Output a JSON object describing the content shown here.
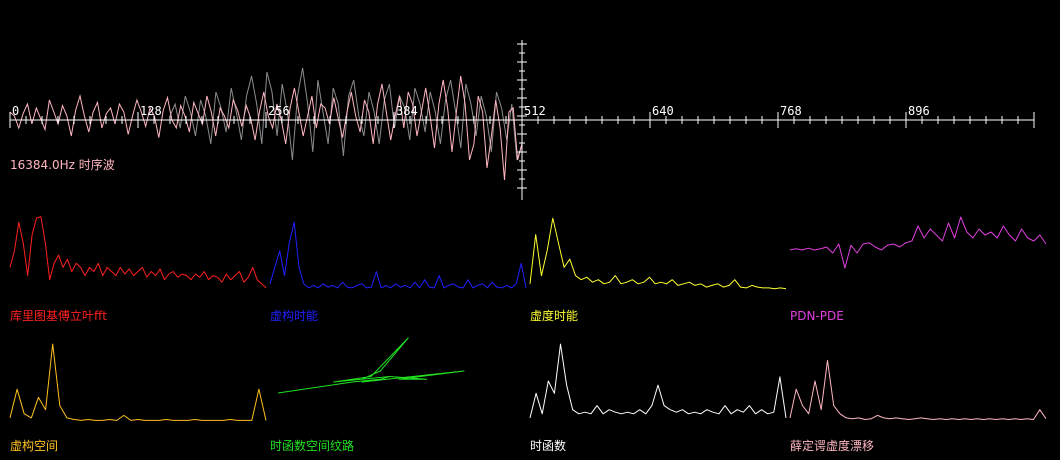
{
  "colors": {
    "background": "#000000",
    "axis": "#ffffff",
    "waveform_primary": "#ffb6c1",
    "waveform_secondary": "#8c8c8c",
    "fft": "#ff2020",
    "imag_energy": "#2020ff",
    "virtual_energy": "#ffff30",
    "pdn_pde": "#e040e0",
    "imag_space": "#ffc020",
    "phase_path": "#20e020",
    "time_function": "#ffffff",
    "schrodinger_drift": "#ffb6c1"
  },
  "chart_data": [
    {
      "type": "line",
      "id": "time-waveform",
      "annotation": "16384.0Hz 时序波",
      "x_tick_labels": [
        "0",
        "128",
        "256",
        "384",
        "512",
        "640",
        "768",
        "896"
      ],
      "xlim": [
        0,
        1024
      ],
      "ylim": [
        -1,
        1
      ],
      "series": [
        {
          "color": "#ffb6c1",
          "x_range": [
            0,
            512
          ],
          "values": [
            0.1,
            0.05,
            -0.1,
            0.08,
            0.2,
            -0.05,
            0.15,
            0.02,
            -0.12,
            0.25,
            0.1,
            -0.05,
            0.18,
            0.05,
            -0.2,
            0.12,
            0.3,
            0.05,
            -0.15,
            0.1,
            0.22,
            -0.1,
            0.08,
            0.15,
            -0.05,
            0.2,
            0.1,
            -0.18,
            0.05,
            0.25,
            0.1,
            -0.08,
            0.15,
            0.05,
            -0.22,
            0.12,
            0.28,
            0.0,
            -0.1,
            0.18,
            0.05,
            -0.15,
            0.22,
            0.08,
            -0.05,
            0.3,
            0.1,
            -0.2,
            0.15,
            0.05,
            -0.1,
            0.25,
            0.12,
            -0.08,
            0.18,
            0.02,
            -0.25,
            0.1,
            0.35,
            0.05,
            -0.1,
            0.2,
            0.0,
            -0.3,
            0.15,
            0.4,
            0.1,
            -0.2,
            0.05,
            0.3,
            -0.1,
            0.2,
            0.15,
            -0.05,
            0.28,
            0.02,
            -0.22,
            0.1,
            0.35,
            0.05,
            -0.15,
            0.25,
            0.1,
            -0.3,
            0.2,
            0.45,
            0.1,
            -0.25,
            0.05,
            0.3,
            -0.1,
            0.35,
            0.2,
            -0.2,
            0.1,
            0.4,
            0.05,
            -0.35,
            0.2,
            0.5,
            0.15,
            -0.4,
            0.1,
            0.55,
            0.2,
            -0.5,
            -0.3,
            0.3,
            0.1,
            -0.6,
            -0.2,
            0.25,
            -0.1,
            -0.75,
            0.1,
            0.15,
            -0.5,
            -0.3
          ]
        },
        {
          "color": "#8c8c8c",
          "x_range": [
            160,
            512
          ],
          "values": [
            0.05,
            0.2,
            -0.1,
            0.3,
            0.1,
            -0.2,
            0.25,
            0.05,
            -0.3,
            0.35,
            0.15,
            -0.15,
            0.4,
            0.1,
            -0.25,
            0.3,
            0.55,
            0.2,
            -0.3,
            0.6,
            0.35,
            -0.2,
            0.45,
            0.1,
            -0.5,
            0.3,
            0.65,
            0.2,
            -0.4,
            0.5,
            0.1,
            -0.3,
            0.4,
            0.2,
            -0.45,
            0.3,
            0.5,
            0.05,
            -0.2,
            0.35,
            0.1,
            -0.3,
            0.25,
            0.45,
            -0.1,
            0.3,
            0.15,
            -0.25,
            0.4,
            0.2,
            -0.15,
            0.35,
            0.1,
            -0.3,
            0.25,
            0.5,
            0.1,
            -0.35,
            0.45,
            0.2,
            -0.2,
            0.3,
            0.05,
            -0.4,
            0.35,
            0.15,
            -0.25,
            0.2,
            -0.5,
            -0.3
          ]
        }
      ]
    },
    {
      "type": "line",
      "id": "fft",
      "title": "库里图基傅立叶fft",
      "color": "#ff2020",
      "values": [
        0.3,
        0.5,
        0.85,
        0.6,
        0.2,
        0.7,
        0.9,
        0.92,
        0.6,
        0.15,
        0.35,
        0.45,
        0.3,
        0.4,
        0.25,
        0.35,
        0.3,
        0.2,
        0.3,
        0.25,
        0.35,
        0.2,
        0.3,
        0.25,
        0.2,
        0.3,
        0.22,
        0.28,
        0.2,
        0.25,
        0.3,
        0.18,
        0.25,
        0.2,
        0.28,
        0.15,
        0.22,
        0.25,
        0.18,
        0.22,
        0.2,
        0.15,
        0.22,
        0.18,
        0.25,
        0.15,
        0.2,
        0.18,
        0.12,
        0.22,
        0.15,
        0.2,
        0.25,
        0.12,
        0.18,
        0.3,
        0.15,
        0.1,
        0.05
      ]
    },
    {
      "type": "line",
      "id": "imag-energy",
      "title": "虚构时能",
      "color": "#2020ff",
      "values": [
        0.1,
        0.3,
        0.5,
        0.2,
        0.6,
        0.85,
        0.3,
        0.1,
        0.05,
        0.08,
        0.05,
        0.1,
        0.06,
        0.08,
        0.05,
        0.12,
        0.06,
        0.05,
        0.08,
        0.1,
        0.05,
        0.06,
        0.25,
        0.05,
        0.08,
        0.05,
        0.1,
        0.06,
        0.08,
        0.05,
        0.12,
        0.05,
        0.15,
        0.06,
        0.05,
        0.2,
        0.05,
        0.08,
        0.1,
        0.06,
        0.05,
        0.15,
        0.05,
        0.08,
        0.1,
        0.05,
        0.12,
        0.06,
        0.05,
        0.08,
        0.05,
        0.1,
        0.35,
        0.05
      ]
    },
    {
      "type": "line",
      "id": "virtual-energy",
      "title": "虚度时能",
      "color": "#ffff30",
      "values": [
        0.1,
        0.7,
        0.2,
        0.5,
        0.9,
        0.6,
        0.3,
        0.4,
        0.2,
        0.15,
        0.18,
        0.12,
        0.15,
        0.1,
        0.12,
        0.2,
        0.1,
        0.12,
        0.15,
        0.1,
        0.12,
        0.18,
        0.1,
        0.12,
        0.1,
        0.15,
        0.08,
        0.1,
        0.12,
        0.08,
        0.1,
        0.06,
        0.08,
        0.1,
        0.06,
        0.08,
        0.15,
        0.06,
        0.05,
        0.08,
        0.06,
        0.05,
        0.05,
        0.04,
        0.05,
        0.04
      ]
    },
    {
      "type": "line",
      "id": "pdn-pde",
      "title": "PDN-PDE",
      "color": "#e040e0",
      "values": [
        0.0,
        0.02,
        0.0,
        0.03,
        0.0,
        0.02,
        0.05,
        -0.05,
        0.1,
        -0.3,
        0.08,
        -0.05,
        0.1,
        0.12,
        0.05,
        0.0,
        0.08,
        0.1,
        0.05,
        0.12,
        0.15,
        0.4,
        0.2,
        0.35,
        0.25,
        0.15,
        0.45,
        0.2,
        0.55,
        0.3,
        0.2,
        0.35,
        0.25,
        0.3,
        0.2,
        0.4,
        0.25,
        0.15,
        0.35,
        0.2,
        0.15,
        0.25,
        0.1
      ]
    },
    {
      "type": "line",
      "id": "imag-space",
      "title": "虚构空间",
      "color": "#ffc020",
      "values": [
        0.05,
        0.4,
        0.1,
        0.05,
        0.3,
        0.15,
        0.95,
        0.2,
        0.05,
        0.03,
        0.02,
        0.03,
        0.02,
        0.02,
        0.03,
        0.02,
        0.08,
        0.02,
        0.03,
        0.02,
        0.02,
        0.02,
        0.03,
        0.02,
        0.02,
        0.02,
        0.03,
        0.02,
        0.02,
        0.02,
        0.02,
        0.03,
        0.02,
        0.02,
        0.02,
        0.4,
        0.02
      ]
    },
    {
      "type": "scatter",
      "id": "phase-path",
      "title": "时函数空间纹路",
      "color": "#20e020",
      "points": [
        [
          0.0,
          -0.2
        ],
        [
          0.4,
          0.0
        ],
        [
          0.55,
          0.05
        ],
        [
          0.6,
          0.1
        ],
        [
          0.45,
          0.05
        ],
        [
          0.55,
          0.2
        ],
        [
          0.7,
          0.8
        ],
        [
          0.5,
          0.1
        ],
        [
          0.3,
          0.0
        ],
        [
          0.6,
          0.1
        ],
        [
          0.8,
          0.05
        ],
        [
          0.65,
          0.05
        ],
        [
          1.0,
          0.2
        ],
        [
          0.45,
          0.0
        ]
      ]
    },
    {
      "type": "line",
      "id": "time-function",
      "title": "时函数",
      "color": "#ffffff",
      "values": [
        0.05,
        0.35,
        0.1,
        0.5,
        0.35,
        0.95,
        0.45,
        0.15,
        0.1,
        0.12,
        0.1,
        0.2,
        0.1,
        0.15,
        0.12,
        0.1,
        0.12,
        0.1,
        0.15,
        0.1,
        0.2,
        0.45,
        0.2,
        0.15,
        0.12,
        0.15,
        0.1,
        0.12,
        0.1,
        0.15,
        0.12,
        0.1,
        0.2,
        0.1,
        0.15,
        0.12,
        0.2,
        0.1,
        0.15,
        0.1,
        0.12,
        0.55,
        0.05
      ]
    },
    {
      "type": "line",
      "id": "schrodinger-drift",
      "title": "薛定谔虚度漂移",
      "color": "#ffb6c1",
      "values": [
        0.05,
        0.4,
        0.2,
        0.1,
        0.5,
        0.15,
        0.75,
        0.2,
        0.1,
        0.05,
        0.04,
        0.05,
        0.03,
        0.04,
        0.08,
        0.05,
        0.04,
        0.05,
        0.04,
        0.03,
        0.04,
        0.05,
        0.04,
        0.03,
        0.04,
        0.03,
        0.04,
        0.03,
        0.04,
        0.03,
        0.04,
        0.03,
        0.04,
        0.03,
        0.04,
        0.03,
        0.04,
        0.03,
        0.04,
        0.03,
        0.15,
        0.04
      ]
    }
  ]
}
